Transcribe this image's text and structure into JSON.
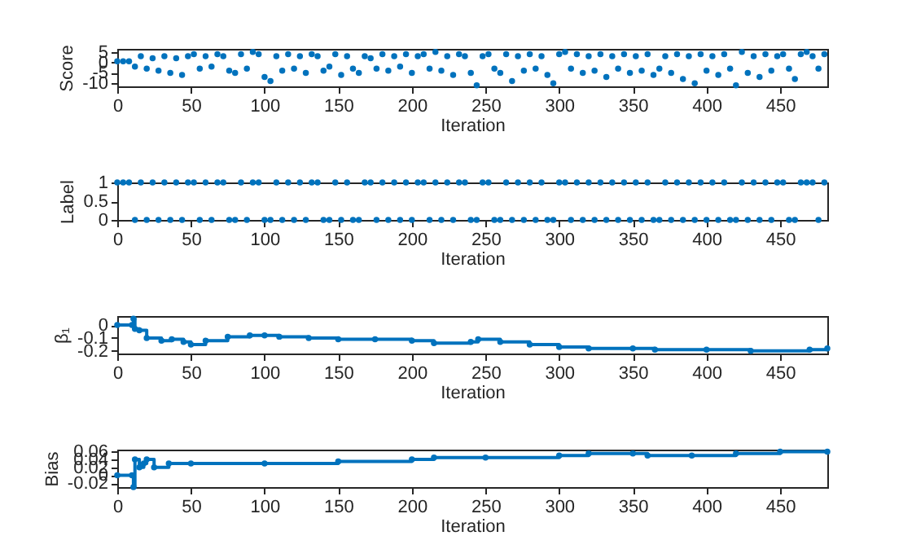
{
  "chart_data": [
    {
      "type": "scatter",
      "xlabel": "Iteration",
      "ylabel": "Score",
      "xlim": [
        0,
        482
      ],
      "xticks": [
        0,
        50,
        100,
        150,
        200,
        250,
        300,
        350,
        400,
        450
      ],
      "ylim": [
        -11.5,
        6.5
      ],
      "yticks": [
        -10,
        -5,
        0,
        5
      ],
      "marker": "circle",
      "x": [
        0,
        4,
        8,
        12,
        16,
        20,
        24,
        28,
        32,
        36,
        40,
        44,
        48,
        52,
        56,
        60,
        64,
        68,
        72,
        76,
        80,
        84,
        88,
        92,
        96,
        100,
        104,
        108,
        112,
        116,
        120,
        124,
        128,
        132,
        136,
        140,
        144,
        148,
        152,
        156,
        160,
        164,
        168,
        172,
        176,
        180,
        184,
        188,
        192,
        196,
        200,
        204,
        208,
        212,
        216,
        220,
        224,
        228,
        232,
        236,
        240,
        244,
        248,
        252,
        256,
        260,
        264,
        268,
        272,
        276,
        280,
        284,
        288,
        292,
        296,
        300,
        304,
        308,
        312,
        316,
        320,
        324,
        328,
        332,
        336,
        340,
        344,
        348,
        352,
        356,
        360,
        364,
        368,
        372,
        376,
        380,
        384,
        388,
        392,
        396,
        400,
        404,
        408,
        412,
        416,
        420,
        424,
        428,
        432,
        436,
        440,
        444,
        448,
        452,
        456,
        460,
        464,
        468,
        472,
        476,
        480
      ],
      "series": [
        {
          "color": "#0072bd",
          "values": [
            0.5,
            0.5,
            0.5,
            -2,
            3,
            -3,
            2,
            -4,
            3,
            -5,
            2,
            -6,
            3,
            4,
            -3,
            3,
            -2,
            4,
            3,
            -4,
            -5,
            4,
            -3,
            5,
            4,
            -7,
            -9,
            3,
            -4,
            4,
            -3,
            3,
            -5,
            4,
            3,
            -4,
            -2,
            4,
            -6,
            3,
            -3,
            -5,
            3,
            2,
            -3,
            4,
            -4,
            3,
            -2,
            4,
            -5,
            3,
            4,
            -3,
            5,
            -4,
            3,
            -6,
            4,
            3,
            -5,
            -11,
            3,
            4,
            -3,
            -5,
            4,
            -9,
            3,
            -4,
            4,
            -3,
            3,
            -6,
            -10,
            4,
            5,
            -3,
            4,
            -5,
            3,
            -4,
            4,
            -7,
            3,
            -3,
            4,
            -5,
            3,
            -4,
            4,
            -6,
            -3,
            3,
            -5,
            4,
            -8,
            3,
            -10,
            4,
            -4,
            3,
            -6,
            4,
            -3,
            -11,
            5,
            -5,
            3,
            -7,
            4,
            -4,
            3,
            4,
            -3,
            -8,
            4,
            5,
            3,
            -3,
            4
          ]
        }
      ]
    },
    {
      "type": "scatter",
      "xlabel": "Iteration",
      "ylabel": "Label",
      "xlim": [
        0,
        482
      ],
      "xticks": [
        0,
        50,
        100,
        150,
        200,
        250,
        300,
        350,
        400,
        450
      ],
      "ylim": [
        0,
        1
      ],
      "yticks": [
        0,
        0.5,
        1
      ],
      "marker": "circle",
      "x": [
        0,
        4,
        8,
        12,
        16,
        20,
        24,
        28,
        32,
        36,
        40,
        44,
        48,
        52,
        56,
        60,
        64,
        68,
        72,
        76,
        80,
        84,
        88,
        92,
        96,
        100,
        104,
        108,
        112,
        116,
        120,
        124,
        128,
        132,
        136,
        140,
        144,
        148,
        152,
        156,
        160,
        164,
        168,
        172,
        176,
        180,
        184,
        188,
        192,
        196,
        200,
        204,
        208,
        212,
        216,
        220,
        224,
        228,
        232,
        236,
        240,
        244,
        248,
        252,
        256,
        260,
        264,
        268,
        272,
        276,
        280,
        284,
        288,
        292,
        296,
        300,
        304,
        308,
        312,
        316,
        320,
        324,
        328,
        332,
        336,
        340,
        344,
        348,
        352,
        356,
        360,
        364,
        368,
        372,
        376,
        380,
        384,
        388,
        392,
        396,
        400,
        404,
        408,
        412,
        416,
        420,
        424,
        428,
        432,
        436,
        440,
        444,
        448,
        452,
        456,
        460,
        464,
        468,
        472,
        476,
        480
      ],
      "series": [
        {
          "color": "#0072bd",
          "values": [
            1,
            1,
            1,
            0,
            1,
            0,
            1,
            0,
            1,
            0,
            1,
            0,
            1,
            1,
            0,
            1,
            0,
            1,
            1,
            0,
            0,
            1,
            0,
            1,
            1,
            0,
            0,
            1,
            0,
            1,
            0,
            1,
            0,
            1,
            1,
            0,
            0,
            1,
            0,
            1,
            0,
            0,
            1,
            1,
            0,
            1,
            0,
            1,
            0,
            1,
            0,
            1,
            1,
            0,
            1,
            0,
            1,
            0,
            1,
            1,
            0,
            0,
            1,
            1,
            0,
            0,
            1,
            0,
            1,
            0,
            1,
            0,
            1,
            0,
            0,
            1,
            1,
            0,
            1,
            0,
            1,
            0,
            1,
            0,
            1,
            0,
            1,
            0,
            1,
            0,
            1,
            0,
            0,
            1,
            0,
            1,
            0,
            1,
            0,
            1,
            0,
            1,
            0,
            1,
            0,
            0,
            1,
            0,
            1,
            0,
            1,
            0,
            1,
            1,
            0,
            0,
            1,
            1,
            1,
            0,
            1
          ]
        }
      ]
    },
    {
      "type": "step",
      "xlabel": "Iteration",
      "ylabel": "β₁",
      "xlim": [
        0,
        482
      ],
      "xticks": [
        0,
        50,
        100,
        150,
        200,
        250,
        300,
        350,
        400,
        450
      ],
      "ylim": [
        -0.22,
        0.07
      ],
      "yticks": [
        -0.2,
        -0.1,
        0
      ],
      "marker": "circle",
      "x": [
        0,
        10,
        11,
        12,
        15,
        20,
        30,
        37,
        45,
        50,
        60,
        75,
        90,
        100,
        110,
        130,
        150,
        175,
        200,
        215,
        240,
        245,
        260,
        280,
        300,
        320,
        350,
        365,
        400,
        430,
        470,
        482
      ],
      "series": [
        {
          "color": "#0072bd",
          "values": [
            0,
            0,
            0.05,
            -0.03,
            -0.04,
            -0.1,
            -0.12,
            -0.11,
            -0.13,
            -0.15,
            -0.12,
            -0.09,
            -0.08,
            -0.08,
            -0.09,
            -0.1,
            -0.11,
            -0.11,
            -0.12,
            -0.14,
            -0.13,
            -0.11,
            -0.13,
            -0.15,
            -0.17,
            -0.18,
            -0.18,
            -0.19,
            -0.19,
            -0.2,
            -0.19,
            -0.18
          ]
        }
      ]
    },
    {
      "type": "step",
      "xlabel": "Iteration",
      "ylabel": "Bias",
      "xlim": [
        0,
        482
      ],
      "xticks": [
        0,
        50,
        100,
        150,
        200,
        250,
        300,
        350,
        400,
        450
      ],
      "ylim": [
        -0.03,
        0.065
      ],
      "yticks": [
        -0.02,
        0,
        0.02,
        0.04,
        0.06
      ],
      "marker": "circle",
      "x": [
        0,
        10,
        11,
        12,
        15,
        18,
        20,
        25,
        35,
        50,
        100,
        150,
        200,
        215,
        250,
        300,
        320,
        350,
        360,
        390,
        420,
        450,
        482
      ],
      "series": [
        {
          "color": "#0072bd",
          "values": [
            0,
            0,
            -0.03,
            0.04,
            0.02,
            0.03,
            0.04,
            0.02,
            0.03,
            0.03,
            0.03,
            0.035,
            0.04,
            0.045,
            0.045,
            0.05,
            0.055,
            0.055,
            0.05,
            0.05,
            0.055,
            0.06,
            0.06
          ]
        }
      ]
    }
  ]
}
